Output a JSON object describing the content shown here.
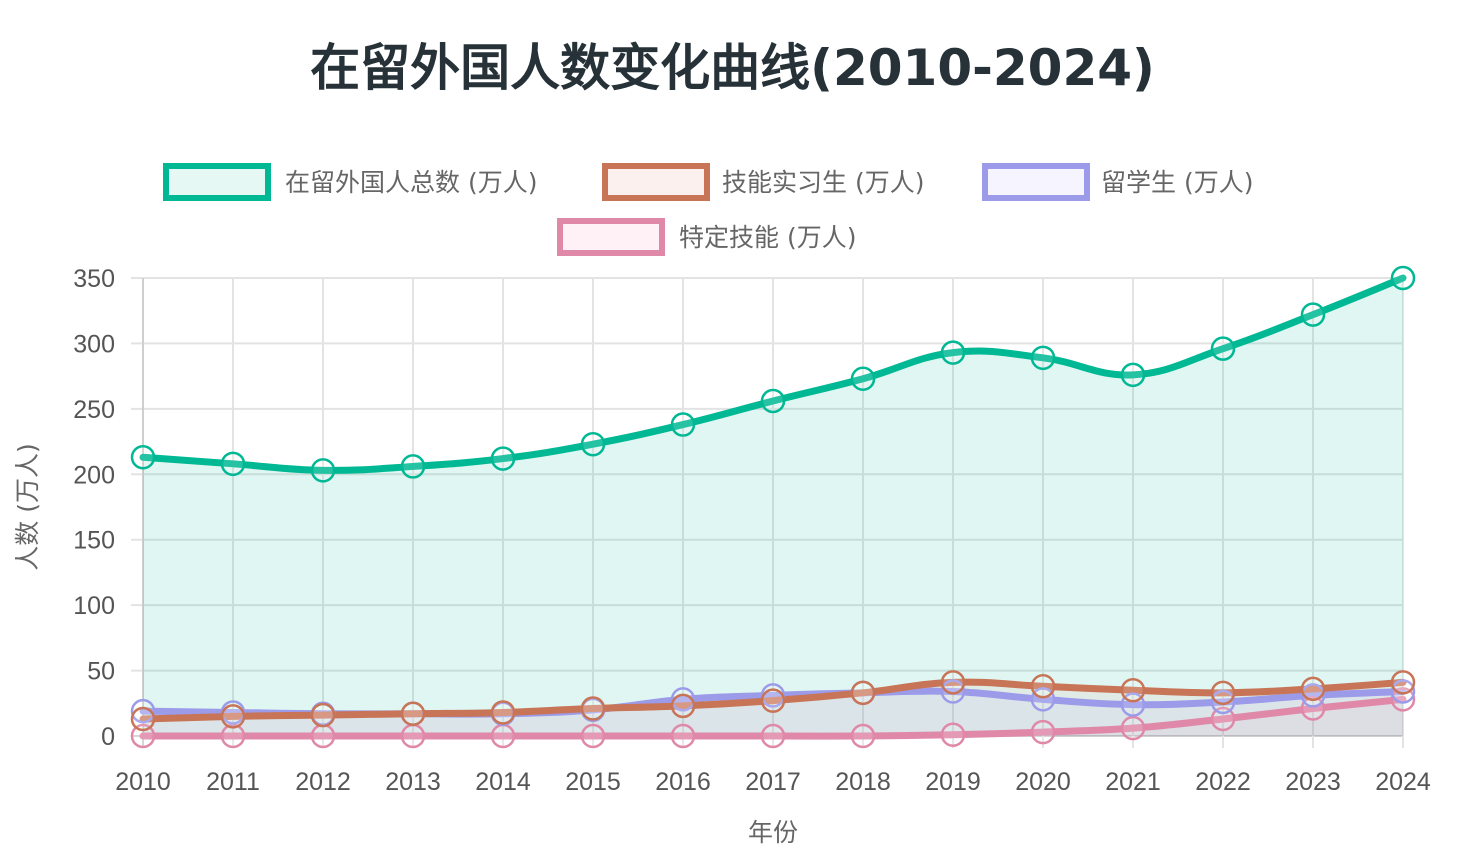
{
  "chart_data": {
    "type": "line",
    "title": "在留外国人数变化曲线(2010-2024)",
    "xlabel": "年份",
    "ylabel": "人数 (万人)",
    "x": [
      "2010",
      "2011",
      "2012",
      "2013",
      "2014",
      "2015",
      "2016",
      "2017",
      "2018",
      "2019",
      "2020",
      "2021",
      "2022",
      "2023",
      "2024"
    ],
    "yticks": [
      "0",
      "50",
      "100",
      "150",
      "200",
      "250",
      "300",
      "350"
    ],
    "ylim": [
      0,
      350
    ],
    "grid": true,
    "legend_position": "top",
    "series": [
      {
        "name": "在留外国人总数 (万人)",
        "color": "#00b894",
        "fill": "rgba(0,184,148,0.12)",
        "values": [
          213,
          208,
          203,
          206,
          212,
          223,
          238,
          256,
          273,
          293,
          289,
          276,
          296,
          322,
          350
        ]
      },
      {
        "name": "技能实习生 (万人)",
        "color": "#c87456",
        "fill": "rgba(225,112,85,0.08)",
        "values": [
          13,
          15,
          16,
          17,
          18,
          21,
          23,
          27,
          33,
          41,
          38,
          35,
          33,
          36,
          41
        ]
      },
      {
        "name": "留学生 (万人)",
        "color": "#9b9bea",
        "fill": "rgba(162,155,254,0.08)",
        "values": [
          19,
          18,
          17,
          17,
          17,
          20,
          28,
          31,
          33,
          34,
          28,
          24,
          26,
          31,
          34
        ]
      },
      {
        "name": "特定技能 (万人)",
        "color": "#e088a8",
        "fill": "rgba(253,121,168,0.06)",
        "values": [
          0,
          0,
          0,
          0,
          0,
          0,
          0,
          0,
          0,
          1,
          3,
          6,
          13,
          21,
          28
        ]
      }
    ]
  }
}
